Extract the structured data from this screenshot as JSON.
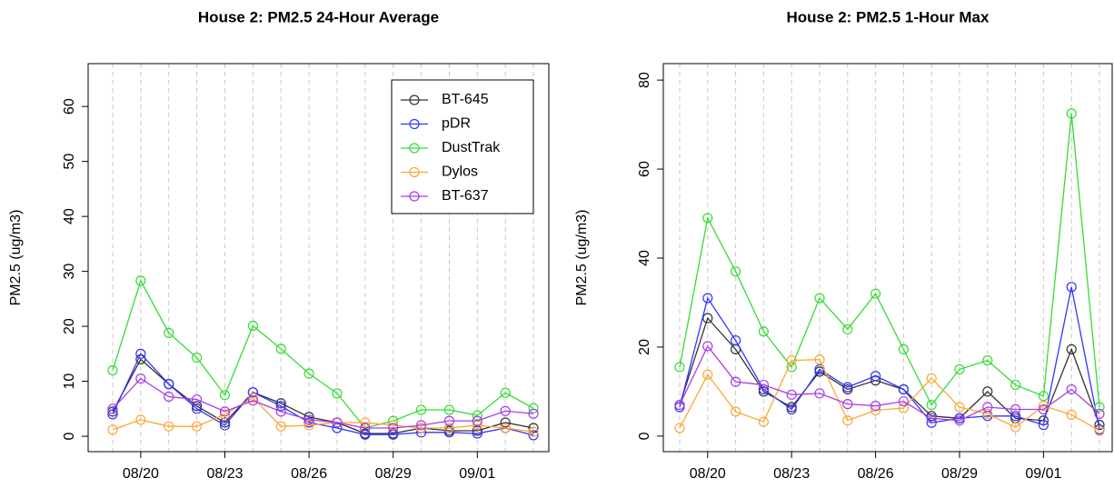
{
  "chart_data": [
    {
      "type": "line",
      "title": "House 2: PM2.5 24-Hour Average",
      "y_label": "PM2.5 (ug/m3)",
      "categories": [
        null,
        "08/20",
        null,
        null,
        "08/23",
        null,
        null,
        "08/26",
        null,
        null,
        "08/29",
        null,
        null,
        "09/01",
        null,
        null
      ],
      "ylim": [
        -2.8,
        67.8
      ],
      "yticks": [
        0,
        10,
        20,
        30,
        40,
        50,
        60
      ],
      "grid": "x-dashed",
      "legend": "topright",
      "series": [
        {
          "name": "BT-645",
          "color": "#333333",
          "values": [
            4.5,
            14,
            9.5,
            5.5,
            2.5,
            8,
            6,
            3.5,
            2.5,
            0.5,
            0.5,
            1.5,
            1,
            1,
            2.5,
            1.5
          ]
        },
        {
          "name": "pDR",
          "color": "#3333ff",
          "values": [
            4,
            15,
            9.5,
            5,
            2,
            8,
            5.5,
            2.5,
            1.5,
            0.3,
            0.3,
            0.7,
            0.7,
            0.5,
            1.5,
            0.2
          ]
        },
        {
          "name": "DustTrak",
          "color": "#33dd33",
          "values": [
            12,
            28.3,
            18.8,
            14.3,
            7.5,
            20.1,
            15.9,
            11.4,
            7.8,
            1.5,
            2.8,
            4.8,
            4.8,
            3.8,
            7.9,
            5.1
          ]
        },
        {
          "name": "Dylos",
          "color": "#ffa533",
          "values": [
            1.2,
            3,
            1.8,
            1.8,
            4,
            7,
            1.8,
            2,
            2.5,
            2.5,
            2,
            1.5,
            1.5,
            2,
            1.5,
            0.8
          ]
        },
        {
          "name": "BT-637",
          "color": "#a63de8",
          "values": [
            5,
            10.5,
            7.2,
            6.7,
            4.5,
            6.5,
            4.5,
            3,
            2.5,
            1.5,
            1.5,
            2,
            2.8,
            2.8,
            4.6,
            4.1
          ]
        }
      ]
    },
    {
      "type": "line",
      "title": "House 2: PM2.5 1-Hour Max",
      "y_label": "PM2.5 (ug/m3)",
      "categories": [
        null,
        "08/20",
        null,
        null,
        "08/23",
        null,
        null,
        "08/26",
        null,
        null,
        "08/29",
        null,
        null,
        "09/01",
        null,
        null
      ],
      "ylim": [
        -3.5,
        83.7
      ],
      "yticks": [
        0,
        20,
        40,
        60,
        80
      ],
      "grid": "x-dashed",
      "series": [
        {
          "name": "BT-645",
          "color": "#333333",
          "values": [
            7,
            26.5,
            19.5,
            10,
            6.5,
            14.5,
            10.5,
            12.5,
            10.5,
            4.5,
            4,
            10,
            4,
            3.5,
            19.5,
            2.5
          ]
        },
        {
          "name": "pDR",
          "color": "#3333ff",
          "values": [
            6.5,
            31,
            21.5,
            10.5,
            6,
            15,
            11,
            13.5,
            10.5,
            3,
            4,
            4.5,
            4.5,
            2.5,
            33.5,
            1.5
          ]
        },
        {
          "name": "DustTrak",
          "color": "#33dd33",
          "values": [
            15.5,
            49,
            37,
            23.5,
            15.5,
            31,
            24,
            32,
            19.5,
            7,
            15,
            17,
            11.5,
            9,
            72.5,
            6.5
          ]
        },
        {
          "name": "Dylos",
          "color": "#ffa533",
          "values": [
            1.8,
            13.8,
            5.5,
            3.2,
            17,
            17.2,
            3.5,
            5.8,
            6.3,
            13,
            6.5,
            5,
            2,
            6.8,
            4.8,
            1.2
          ]
        },
        {
          "name": "BT-637",
          "color": "#a63de8",
          "values": [
            7,
            20.2,
            12.2,
            11.5,
            9.3,
            9.6,
            7.2,
            6.8,
            7.8,
            4,
            3.5,
            6.5,
            6,
            6,
            10.5,
            5
          ]
        }
      ]
    }
  ]
}
